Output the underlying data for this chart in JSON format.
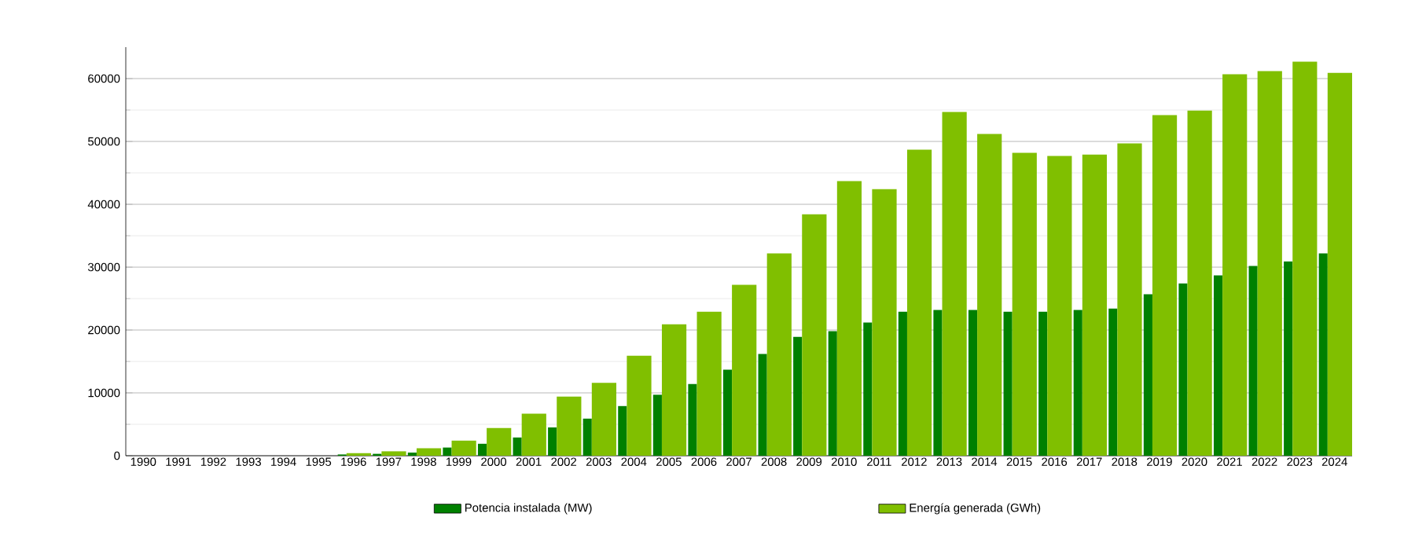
{
  "chart_data": {
    "type": "bar",
    "categories": [
      "1990",
      "1991",
      "1992",
      "1993",
      "1994",
      "1995",
      "1996",
      "1997",
      "1998",
      "1999",
      "2000",
      "2001",
      "2002",
      "2003",
      "2004",
      "2005",
      "2006",
      "2007",
      "2008",
      "2009",
      "2010",
      "2011",
      "2012",
      "2013",
      "2014",
      "2015",
      "2016",
      "2017",
      "2018",
      "2019",
      "2020",
      "2021",
      "2022",
      "2023",
      "2024"
    ],
    "series": [
      {
        "name": "Potencia instalada (MW)",
        "color": "#008000",
        "values": [
          0,
          0,
          0,
          0,
          0,
          0,
          200,
          300,
          500,
          1300,
          1900,
          2900,
          4500,
          5900,
          7900,
          9700,
          11400,
          13700,
          16200,
          18900,
          19800,
          21200,
          22900,
          23200,
          23200,
          22900,
          22900,
          23200,
          23400,
          25700,
          27400,
          28700,
          30200,
          30900,
          32200
        ]
      },
      {
        "name": "Energía generada (GWh)",
        "color": "#80bf00",
        "values": [
          0,
          0,
          0,
          0,
          0,
          0,
          400,
          700,
          1200,
          2400,
          4400,
          6700,
          9400,
          11600,
          15900,
          20900,
          22900,
          27200,
          32200,
          38400,
          43700,
          42400,
          48700,
          54700,
          51200,
          48200,
          47700,
          47900,
          49700,
          54200,
          54900,
          60700,
          61200,
          62700,
          60900
        ]
      }
    ],
    "ylim": [
      0,
      65000
    ],
    "yticks": [
      0,
      10000,
      20000,
      30000,
      40000,
      50000,
      60000
    ],
    "grid": "y",
    "legend": "bottom"
  }
}
